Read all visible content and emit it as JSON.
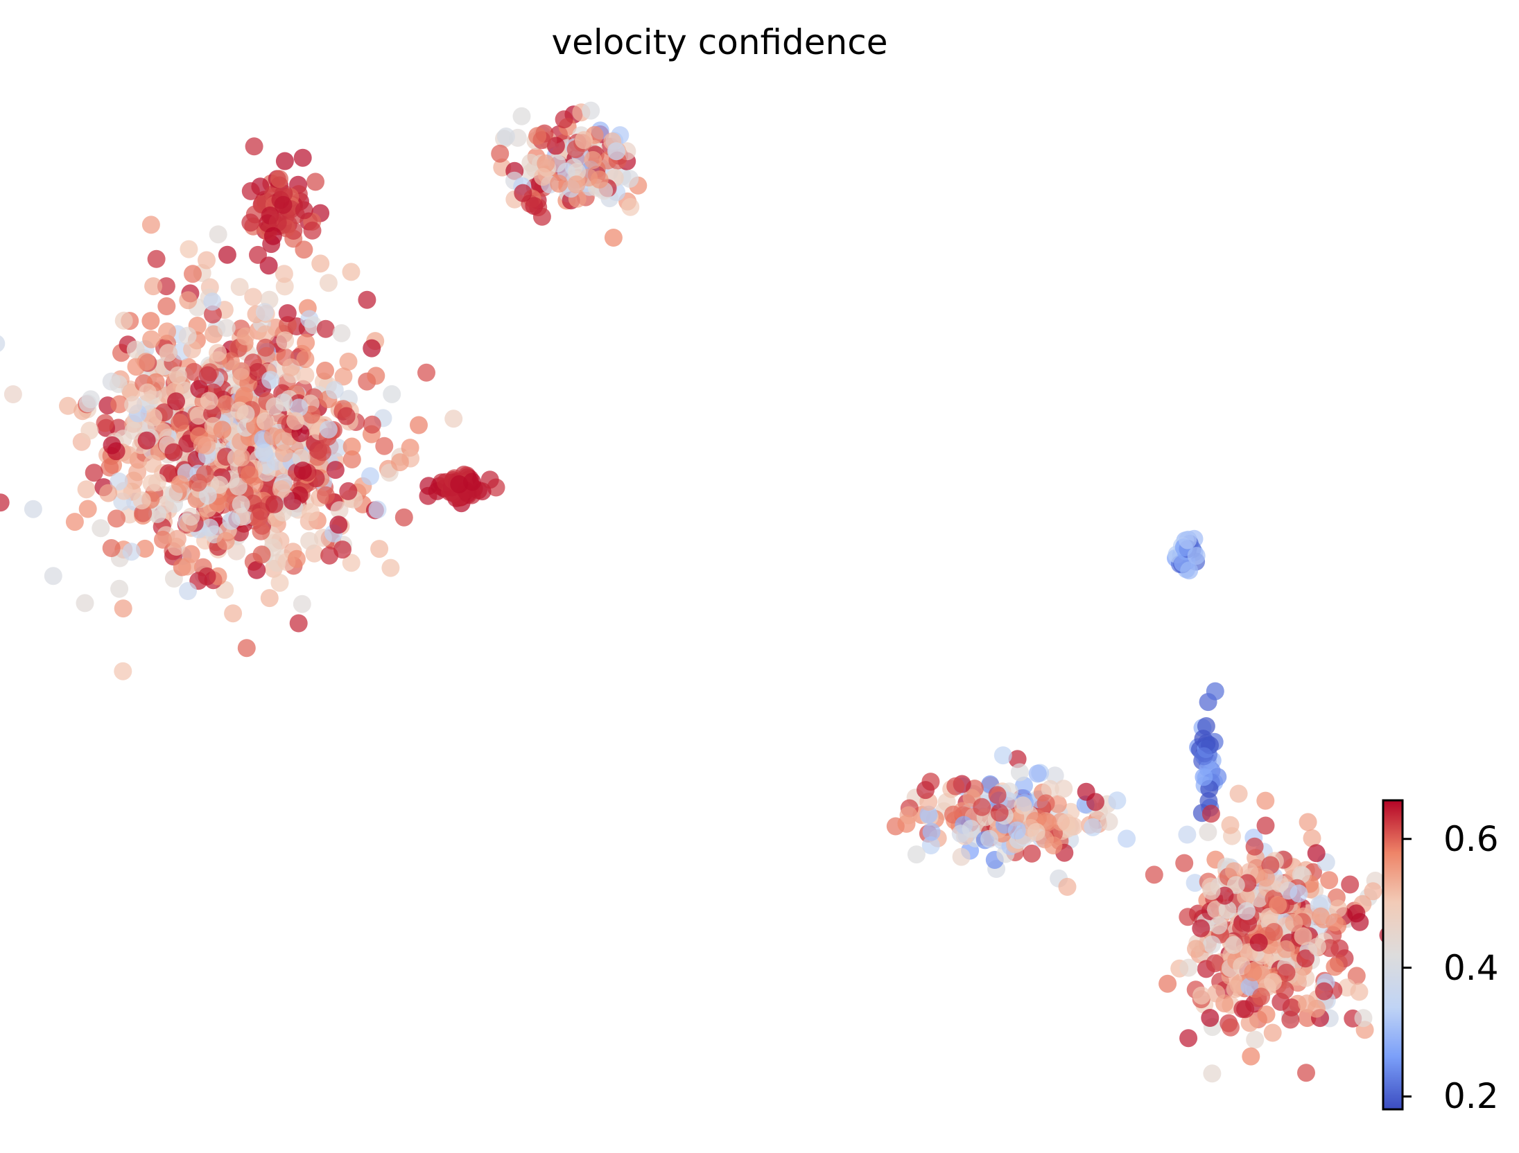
{
  "chart_data": {
    "type": "scatter",
    "title": "velocity confidence",
    "xlabel": "",
    "ylabel": "",
    "axes_visible": false,
    "grid": false,
    "colormap": "coolwarm",
    "colormap_stops": [
      "#3b4cc0",
      "#7b9ff9",
      "#c0d4f5",
      "#dddcdc",
      "#f2cbb7",
      "#ee8468",
      "#b40426"
    ],
    "color_range": [
      0.18,
      0.66
    ],
    "colorbar": {
      "ticks": [
        0.2,
        0.4,
        0.6
      ],
      "tick_labels": [
        "0.2",
        "0.4",
        "0.6"
      ],
      "location": "right"
    },
    "clusters": [
      {
        "region": "upper-left large group",
        "approx_points": 900,
        "color_value_range": [
          0.3,
          0.66
        ],
        "dominant": "orange/red"
      },
      {
        "region": "upper-left red tip",
        "approx_points": 60,
        "color_value_range": [
          0.58,
          0.66
        ],
        "dominant": "dark red"
      },
      {
        "region": "upper-left arm toward right",
        "approx_points": 45,
        "color_value_range": [
          0.62,
          0.66
        ],
        "dominant": "dark red"
      },
      {
        "region": "top-center group",
        "approx_points": 140,
        "color_value_range": [
          0.25,
          0.66
        ],
        "dominant": "dark red"
      },
      {
        "region": "small blue island right",
        "approx_points": 25,
        "color_value_range": [
          0.2,
          0.35
        ],
        "dominant": "blue"
      },
      {
        "region": "blue bridge right",
        "approx_points": 30,
        "color_value_range": [
          0.18,
          0.3
        ],
        "dominant": "blue"
      },
      {
        "region": "lower-right large group",
        "approx_points": 420,
        "color_value_range": [
          0.3,
          0.66
        ],
        "dominant": "red/orange"
      },
      {
        "region": "lower-right left arm",
        "approx_points": 200,
        "color_value_range": [
          0.2,
          0.66
        ],
        "dominant": "mixed red/blue"
      }
    ]
  }
}
